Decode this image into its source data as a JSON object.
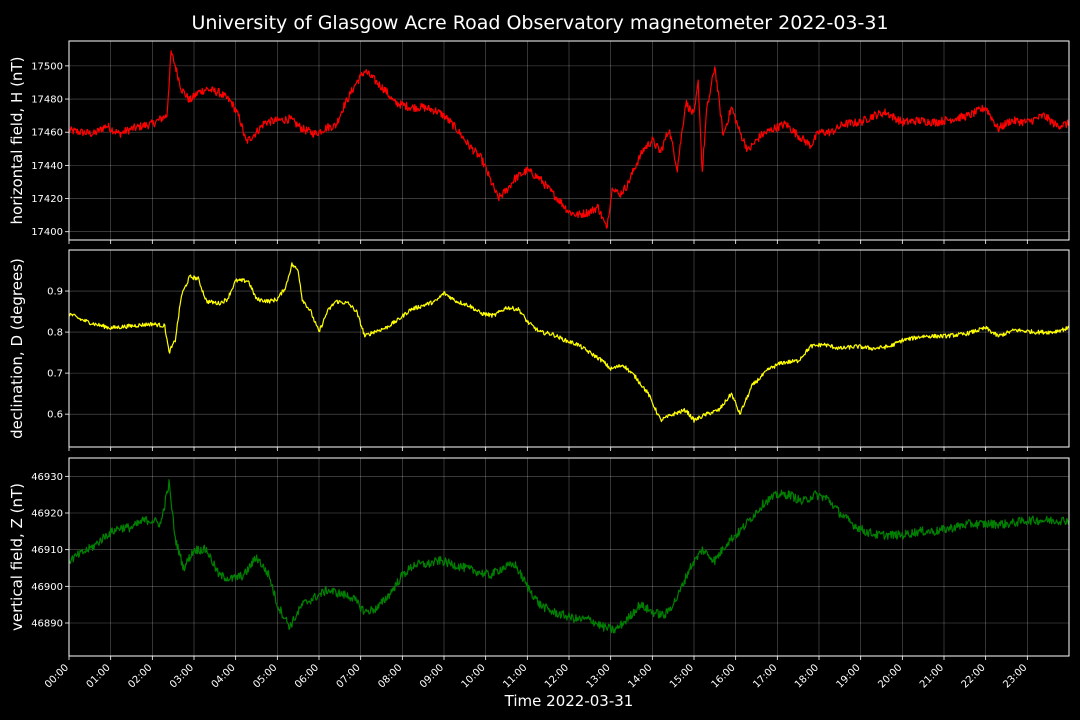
{
  "chart_data": {
    "type": "line",
    "title": "University of Glasgow Acre Road Observatory magnetometer 2022-03-31",
    "xlabel": "Time 2022-03-31",
    "x_tick_labels": [
      "00:00",
      "01:00",
      "02:00",
      "03:00",
      "04:00",
      "05:00",
      "06:00",
      "07:00",
      "08:00",
      "09:00",
      "10:00",
      "11:00",
      "12:00",
      "13:00",
      "14:00",
      "15:00",
      "16:00",
      "17:00",
      "18:00",
      "19:00",
      "20:00",
      "21:00",
      "22:00",
      "23:00"
    ],
    "xlim_hours": [
      0,
      24
    ],
    "grid": true,
    "panels": [
      {
        "ylabel": "horizontal field, H (nT)",
        "color": "#ff0000",
        "ylim": [
          17395,
          17515
        ],
        "yticks": [
          17400,
          17420,
          17440,
          17460,
          17480,
          17500
        ],
        "points": [
          [
            0,
            17461
          ],
          [
            0.3,
            17460
          ],
          [
            0.6,
            17459
          ],
          [
            0.9,
            17464
          ],
          [
            1.2,
            17459
          ],
          [
            1.5,
            17462
          ],
          [
            1.8,
            17464
          ],
          [
            2.0,
            17465
          ],
          [
            2.2,
            17468
          ],
          [
            2.35,
            17470
          ],
          [
            2.45,
            17508
          ],
          [
            2.55,
            17500
          ],
          [
            2.7,
            17486
          ],
          [
            2.9,
            17479
          ],
          [
            3.1,
            17484
          ],
          [
            3.3,
            17486
          ],
          [
            3.6,
            17484
          ],
          [
            3.9,
            17478
          ],
          [
            4.1,
            17468
          ],
          [
            4.25,
            17454
          ],
          [
            4.5,
            17460
          ],
          [
            4.7,
            17466
          ],
          [
            5.0,
            17467
          ],
          [
            5.3,
            17468
          ],
          [
            5.6,
            17462
          ],
          [
            5.9,
            17459
          ],
          [
            6.2,
            17463
          ],
          [
            6.4,
            17464
          ],
          [
            6.6,
            17476
          ],
          [
            6.9,
            17490
          ],
          [
            7.1,
            17497
          ],
          [
            7.35,
            17491
          ],
          [
            7.6,
            17485
          ],
          [
            7.8,
            17478
          ],
          [
            8.2,
            17475
          ],
          [
            8.5,
            17475
          ],
          [
            8.8,
            17473
          ],
          [
            9.0,
            17470
          ],
          [
            9.3,
            17462
          ],
          [
            9.6,
            17452
          ],
          [
            9.9,
            17444
          ],
          [
            10.1,
            17432
          ],
          [
            10.3,
            17420
          ],
          [
            10.5,
            17425
          ],
          [
            10.7,
            17432
          ],
          [
            11.0,
            17437
          ],
          [
            11.3,
            17432
          ],
          [
            11.5,
            17426
          ],
          [
            11.8,
            17418
          ],
          [
            12.0,
            17412
          ],
          [
            12.2,
            17410
          ],
          [
            12.5,
            17412
          ],
          [
            12.7,
            17415
          ],
          [
            12.9,
            17402
          ],
          [
            13.05,
            17428
          ],
          [
            13.2,
            17422
          ],
          [
            13.4,
            17428
          ],
          [
            13.6,
            17440
          ],
          [
            13.8,
            17450
          ],
          [
            14.0,
            17455
          ],
          [
            14.2,
            17448
          ],
          [
            14.4,
            17462
          ],
          [
            14.6,
            17438
          ],
          [
            14.8,
            17478
          ],
          [
            15.0,
            17470
          ],
          [
            15.1,
            17490
          ],
          [
            15.2,
            17436
          ],
          [
            15.3,
            17472
          ],
          [
            15.5,
            17500
          ],
          [
            15.7,
            17458
          ],
          [
            15.9,
            17475
          ],
          [
            16.1,
            17460
          ],
          [
            16.3,
            17449
          ],
          [
            16.6,
            17458
          ],
          [
            16.9,
            17462
          ],
          [
            17.2,
            17465
          ],
          [
            17.5,
            17458
          ],
          [
            17.8,
            17452
          ],
          [
            18.0,
            17460
          ],
          [
            18.3,
            17460
          ],
          [
            18.6,
            17465
          ],
          [
            19.0,
            17466
          ],
          [
            19.3,
            17470
          ],
          [
            19.6,
            17472
          ],
          [
            20.0,
            17466
          ],
          [
            20.4,
            17467
          ],
          [
            20.8,
            17466
          ],
          [
            21.2,
            17468
          ],
          [
            21.6,
            17470
          ],
          [
            22.0,
            17475
          ],
          [
            22.3,
            17462
          ],
          [
            22.6,
            17467
          ],
          [
            23.0,
            17466
          ],
          [
            23.4,
            17470
          ],
          [
            23.7,
            17464
          ],
          [
            24,
            17465
          ]
        ],
        "noise": 2.5
      },
      {
        "ylabel": "declination, D (degrees)",
        "color": "#ffff00",
        "ylim": [
          0.52,
          1.0
        ],
        "yticks": [
          0.6,
          0.7,
          0.8,
          0.9
        ],
        "points": [
          [
            0,
            0.845
          ],
          [
            0.3,
            0.83
          ],
          [
            0.6,
            0.82
          ],
          [
            1.0,
            0.81
          ],
          [
            1.5,
            0.815
          ],
          [
            2.0,
            0.82
          ],
          [
            2.3,
            0.815
          ],
          [
            2.4,
            0.75
          ],
          [
            2.55,
            0.78
          ],
          [
            2.7,
            0.89
          ],
          [
            2.9,
            0.935
          ],
          [
            3.1,
            0.93
          ],
          [
            3.3,
            0.875
          ],
          [
            3.6,
            0.87
          ],
          [
            3.8,
            0.88
          ],
          [
            4.0,
            0.925
          ],
          [
            4.3,
            0.925
          ],
          [
            4.5,
            0.88
          ],
          [
            4.8,
            0.875
          ],
          [
            5.0,
            0.88
          ],
          [
            5.2,
            0.91
          ],
          [
            5.35,
            0.965
          ],
          [
            5.5,
            0.95
          ],
          [
            5.6,
            0.88
          ],
          [
            5.8,
            0.85
          ],
          [
            6.0,
            0.8
          ],
          [
            6.2,
            0.85
          ],
          [
            6.4,
            0.875
          ],
          [
            6.7,
            0.87
          ],
          [
            6.9,
            0.85
          ],
          [
            7.1,
            0.79
          ],
          [
            7.3,
            0.8
          ],
          [
            7.6,
            0.81
          ],
          [
            7.9,
            0.83
          ],
          [
            8.2,
            0.855
          ],
          [
            8.5,
            0.865
          ],
          [
            8.8,
            0.875
          ],
          [
            9.0,
            0.895
          ],
          [
            9.3,
            0.875
          ],
          [
            9.6,
            0.865
          ],
          [
            9.9,
            0.845
          ],
          [
            10.2,
            0.84
          ],
          [
            10.5,
            0.86
          ],
          [
            10.8,
            0.855
          ],
          [
            11.0,
            0.825
          ],
          [
            11.3,
            0.8
          ],
          [
            11.6,
            0.795
          ],
          [
            11.9,
            0.78
          ],
          [
            12.2,
            0.77
          ],
          [
            12.5,
            0.75
          ],
          [
            12.8,
            0.73
          ],
          [
            13.0,
            0.71
          ],
          [
            13.3,
            0.72
          ],
          [
            13.6,
            0.69
          ],
          [
            13.9,
            0.65
          ],
          [
            14.2,
            0.585
          ],
          [
            14.5,
            0.6
          ],
          [
            14.8,
            0.61
          ],
          [
            15.0,
            0.585
          ],
          [
            15.3,
            0.6
          ],
          [
            15.6,
            0.61
          ],
          [
            15.9,
            0.65
          ],
          [
            16.1,
            0.6
          ],
          [
            16.4,
            0.67
          ],
          [
            16.8,
            0.71
          ],
          [
            17.1,
            0.725
          ],
          [
            17.5,
            0.73
          ],
          [
            17.8,
            0.765
          ],
          [
            18.1,
            0.77
          ],
          [
            18.5,
            0.76
          ],
          [
            18.9,
            0.765
          ],
          [
            19.3,
            0.76
          ],
          [
            19.7,
            0.765
          ],
          [
            20.0,
            0.78
          ],
          [
            20.5,
            0.79
          ],
          [
            21.0,
            0.79
          ],
          [
            21.5,
            0.795
          ],
          [
            22.0,
            0.81
          ],
          [
            22.3,
            0.79
          ],
          [
            22.7,
            0.805
          ],
          [
            23.2,
            0.8
          ],
          [
            23.6,
            0.8
          ],
          [
            24,
            0.81
          ]
        ],
        "noise": 0.005
      },
      {
        "ylabel": "vertical field, Z (nT)",
        "color": "#008000",
        "ylim": [
          46881,
          46935
        ],
        "yticks": [
          46890,
          46900,
          46910,
          46920,
          46930
        ],
        "points": [
          [
            0,
            46907
          ],
          [
            0.3,
            46909
          ],
          [
            0.6,
            46911
          ],
          [
            0.9,
            46914
          ],
          [
            1.2,
            46916
          ],
          [
            1.5,
            46916
          ],
          [
            1.8,
            46918
          ],
          [
            2.0,
            46918
          ],
          [
            2.2,
            46917
          ],
          [
            2.4,
            46928
          ],
          [
            2.55,
            46913
          ],
          [
            2.75,
            46905
          ],
          [
            3.0,
            46910
          ],
          [
            3.3,
            46910
          ],
          [
            3.6,
            46903
          ],
          [
            3.9,
            46902
          ],
          [
            4.2,
            46903
          ],
          [
            4.5,
            46908
          ],
          [
            4.8,
            46903
          ],
          [
            5.0,
            46895
          ],
          [
            5.3,
            46889
          ],
          [
            5.6,
            46895
          ],
          [
            5.9,
            46897
          ],
          [
            6.2,
            46899
          ],
          [
            6.5,
            46898
          ],
          [
            6.8,
            46897
          ],
          [
            7.1,
            46893
          ],
          [
            7.4,
            46894
          ],
          [
            7.7,
            46898
          ],
          [
            8.0,
            46903
          ],
          [
            8.3,
            46906
          ],
          [
            8.6,
            46906
          ],
          [
            8.9,
            46907
          ],
          [
            9.2,
            46906
          ],
          [
            9.5,
            46905
          ],
          [
            9.8,
            46904
          ],
          [
            10.1,
            46903
          ],
          [
            10.4,
            46905
          ],
          [
            10.7,
            46906
          ],
          [
            11.0,
            46900
          ],
          [
            11.3,
            46895
          ],
          [
            11.6,
            46893
          ],
          [
            11.9,
            46892
          ],
          [
            12.2,
            46891
          ],
          [
            12.5,
            46891
          ],
          [
            12.8,
            46889
          ],
          [
            13.1,
            46888
          ],
          [
            13.4,
            46891
          ],
          [
            13.7,
            46895
          ],
          [
            14.0,
            46893
          ],
          [
            14.3,
            46892
          ],
          [
            14.6,
            46897
          ],
          [
            14.9,
            46905
          ],
          [
            15.2,
            46910
          ],
          [
            15.5,
            46907
          ],
          [
            15.8,
            46912
          ],
          [
            16.1,
            46915
          ],
          [
            16.4,
            46919
          ],
          [
            16.7,
            46923
          ],
          [
            17.0,
            46925
          ],
          [
            17.3,
            46925
          ],
          [
            17.6,
            46923
          ],
          [
            17.9,
            46925
          ],
          [
            18.2,
            46924
          ],
          [
            18.5,
            46920
          ],
          [
            18.8,
            46917
          ],
          [
            19.1,
            46915
          ],
          [
            19.4,
            46914
          ],
          [
            19.7,
            46914
          ],
          [
            20.0,
            46914
          ],
          [
            20.4,
            46915
          ],
          [
            20.8,
            46915
          ],
          [
            21.2,
            46916
          ],
          [
            21.6,
            46917
          ],
          [
            22.0,
            46917
          ],
          [
            22.5,
            46917
          ],
          [
            23.0,
            46918
          ],
          [
            23.5,
            46918
          ],
          [
            24,
            46918
          ]
        ],
        "noise": 1.2
      }
    ]
  }
}
